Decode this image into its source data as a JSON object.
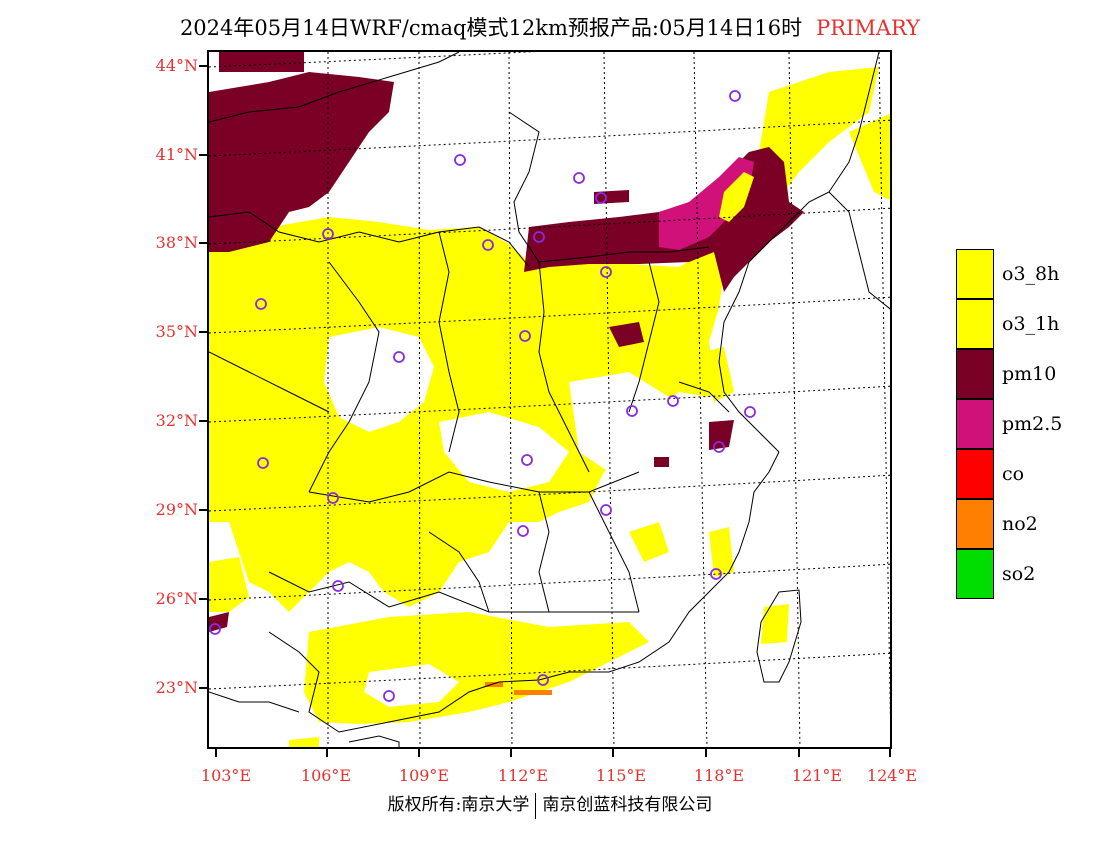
{
  "title": {
    "text": "2024年05月14日WRF/cmaq模式12km预报产品:05月14日16时",
    "flag": "PRIMARY"
  },
  "axes": {
    "lat_labels": [
      "44°N",
      "41°N",
      "38°N",
      "35°N",
      "32°N",
      "29°N",
      "26°N",
      "23°N"
    ],
    "lon_labels": [
      "103°E",
      "106°E",
      "109°E",
      "112°E",
      "115°E",
      "118°E",
      "121°E",
      "124°E"
    ]
  },
  "legend": {
    "items": [
      {
        "label": "o3_8h",
        "color": "#ffff00"
      },
      {
        "label": "o3_1h",
        "color": "#ffff00"
      },
      {
        "label": "pm10",
        "color": "#7a0025"
      },
      {
        "label": "pm2.5",
        "color": "#d0117a"
      },
      {
        "label": "co",
        "color": "#ff0000"
      },
      {
        "label": "no2",
        "color": "#ff7f00"
      },
      {
        "label": "so2",
        "color": "#00dd00"
      }
    ]
  },
  "colors": {
    "o3": "#ffff00",
    "pm10": "#7a0025",
    "pm25": "#d0117a",
    "no2": "#ff7f00",
    "station": "#8a2be2",
    "axis_label": "#e8302e"
  },
  "footer": {
    "left": "版权所有:南京大学",
    "right": "南京创蓝科技有限公司"
  }
}
